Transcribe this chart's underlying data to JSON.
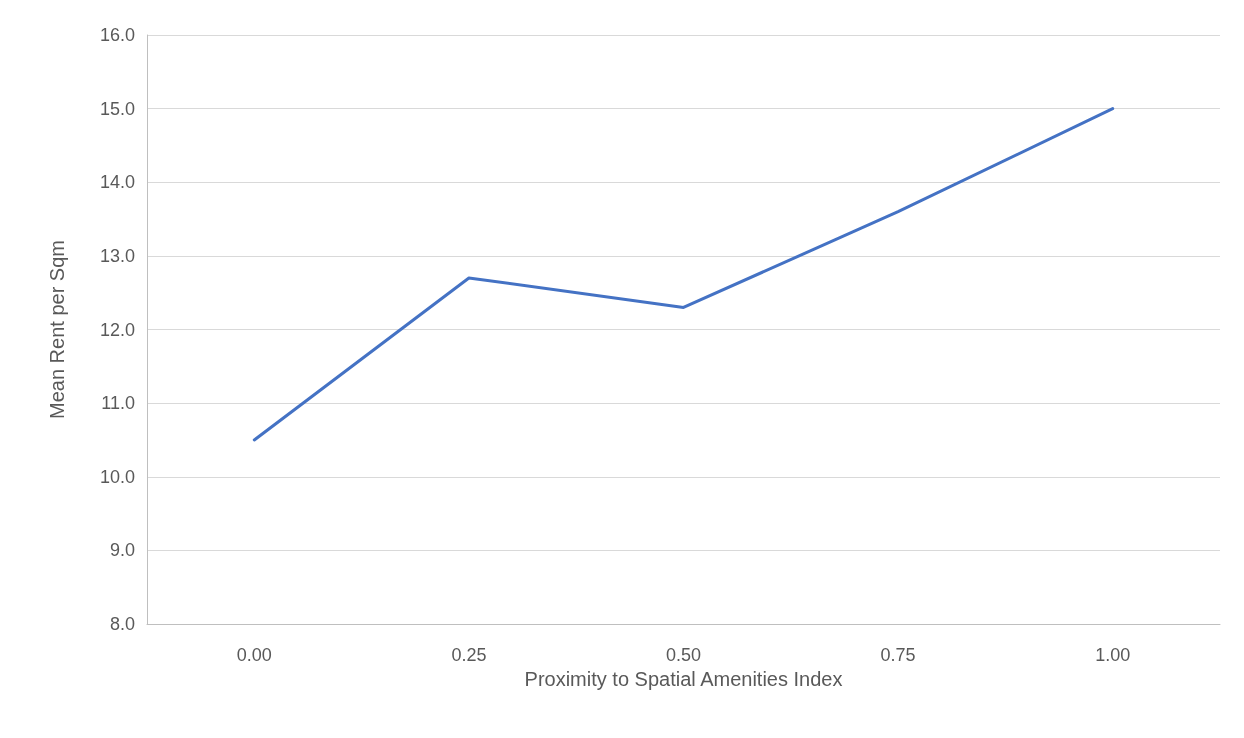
{
  "chart_data": {
    "type": "line",
    "xlabel": "Proximity to Spatial Amenities Index",
    "ylabel": "Mean Rent per Sqm",
    "categories": [
      "0.00",
      "0.25",
      "0.50",
      "0.75",
      "1.00"
    ],
    "series": [
      {
        "color": "#4472c4",
        "values": [
          10.5,
          12.7,
          12.3,
          13.6,
          15.0
        ]
      }
    ],
    "ylim": [
      8,
      16
    ],
    "yticks": [
      {
        "value": 8,
        "label": "8.0"
      },
      {
        "value": 9,
        "label": "9.0"
      },
      {
        "value": 10,
        "label": "10.0"
      },
      {
        "value": 11,
        "label": "11.0"
      },
      {
        "value": 12,
        "label": "12.0"
      },
      {
        "value": 13,
        "label": "13.0"
      },
      {
        "value": 14,
        "label": "14.0"
      },
      {
        "value": 15,
        "label": "15.0"
      },
      {
        "value": 16,
        "label": "16.0"
      }
    ],
    "grid": "y",
    "marker": "none",
    "line_style": "solid"
  }
}
